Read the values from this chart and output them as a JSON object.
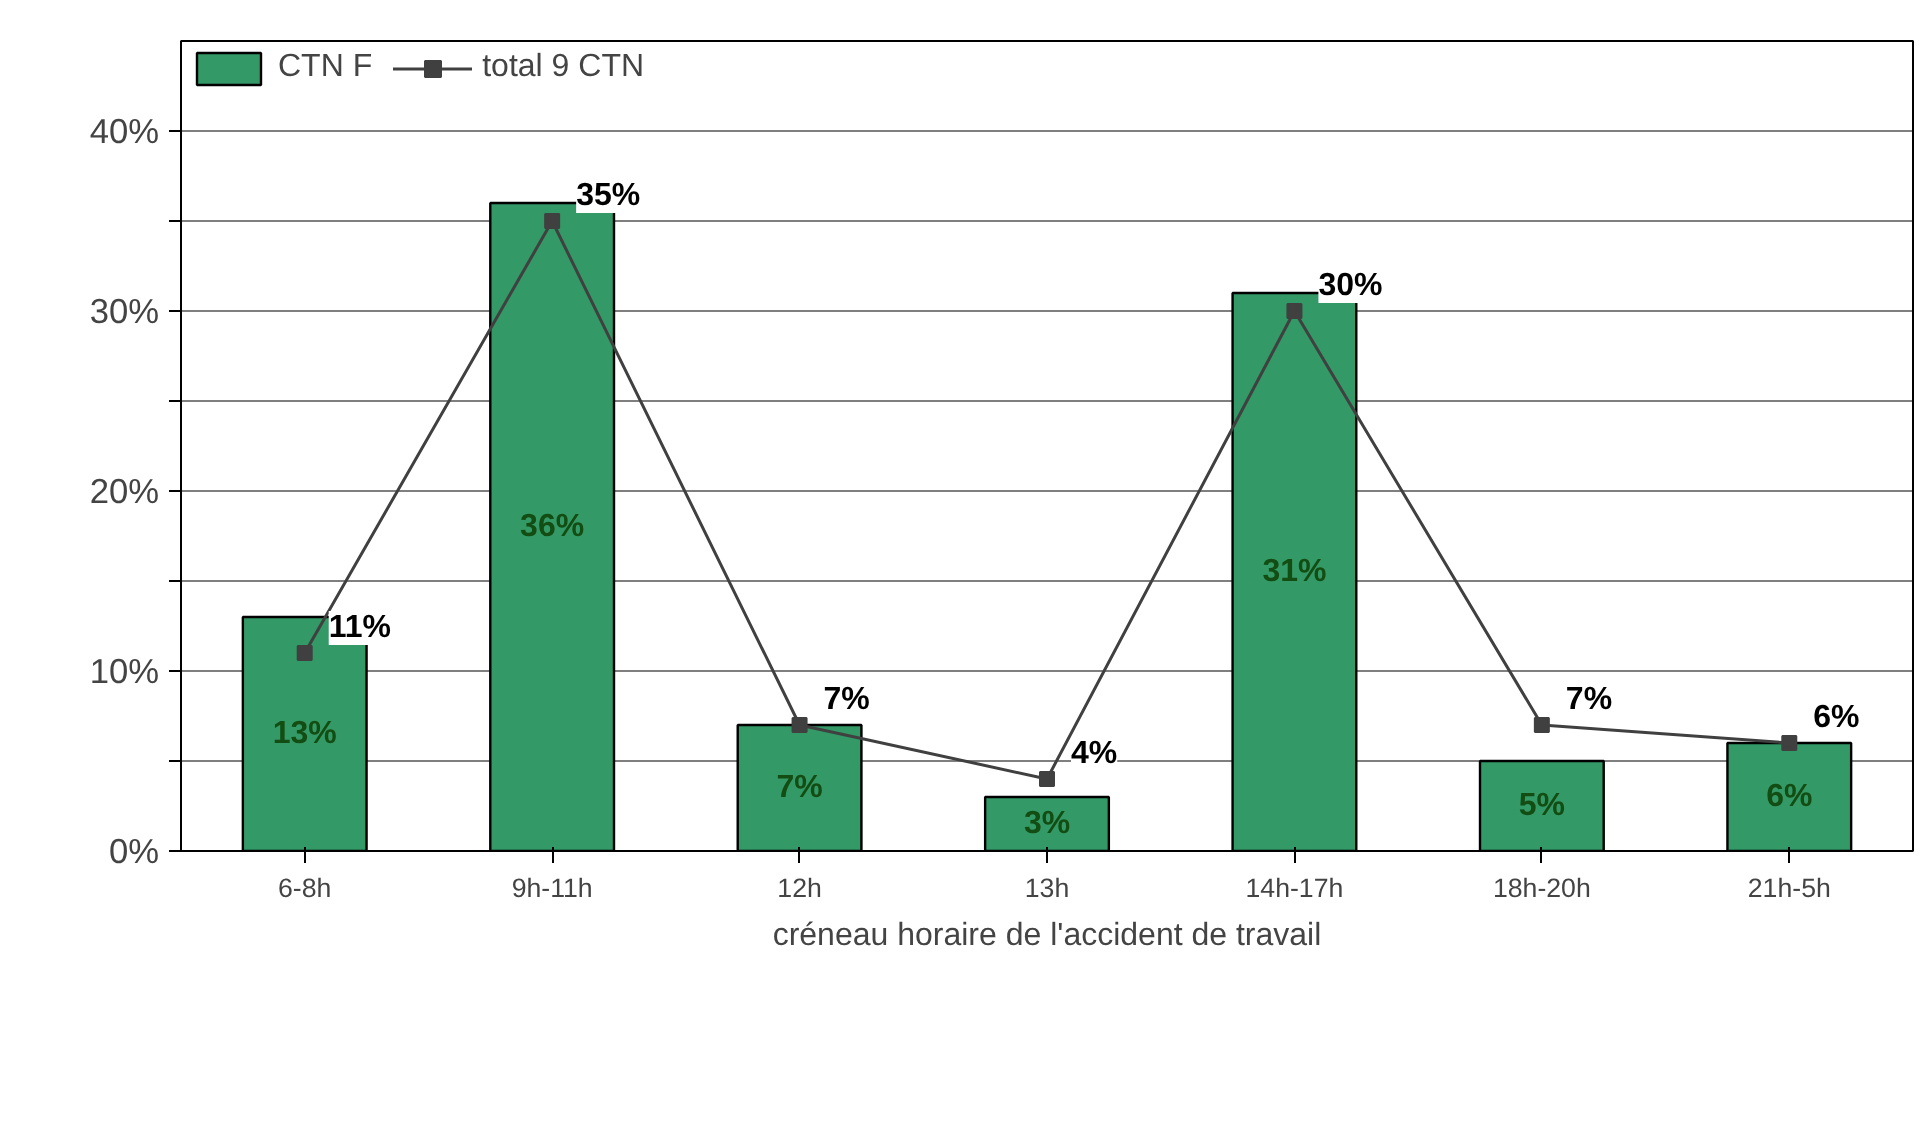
{
  "chart_data": {
    "type": "bar",
    "xlabel": "créneau horaire de l'accident de travail",
    "categories": [
      "6-8h",
      "9h-11h",
      "12h",
      "13h",
      "14h-17h",
      "18h-20h",
      "21h-5h"
    ],
    "series": [
      {
        "name": "CTN F",
        "color": "#339966",
        "values": [
          13,
          36,
          7,
          3,
          31,
          5,
          6
        ],
        "value_labels": [
          "13%",
          "36%",
          "7%",
          "3%",
          "31%",
          "5%",
          "6%"
        ]
      },
      {
        "name": "total 9 CTN",
        "type": "line",
        "color": "#404040",
        "values": [
          11,
          35,
          7,
          4,
          30,
          7,
          6
        ],
        "value_labels": [
          "11%",
          "35%",
          "7%",
          "4%",
          "30%",
          "7%",
          "6%"
        ]
      }
    ],
    "ylim": [
      0,
      45
    ],
    "yticks": [
      {
        "value": 0,
        "label": "0%"
      },
      {
        "value": 5,
        "label": null
      },
      {
        "value": 10,
        "label": "10%"
      },
      {
        "value": 15,
        "label": null
      },
      {
        "value": 20,
        "label": "20%"
      },
      {
        "value": 25,
        "label": null
      },
      {
        "value": 30,
        "label": "30%"
      },
      {
        "value": 35,
        "label": null
      },
      {
        "value": 40,
        "label": "40%"
      }
    ],
    "grid": "y",
    "legend": "top left",
    "marker": "square",
    "line_style": "solid"
  }
}
